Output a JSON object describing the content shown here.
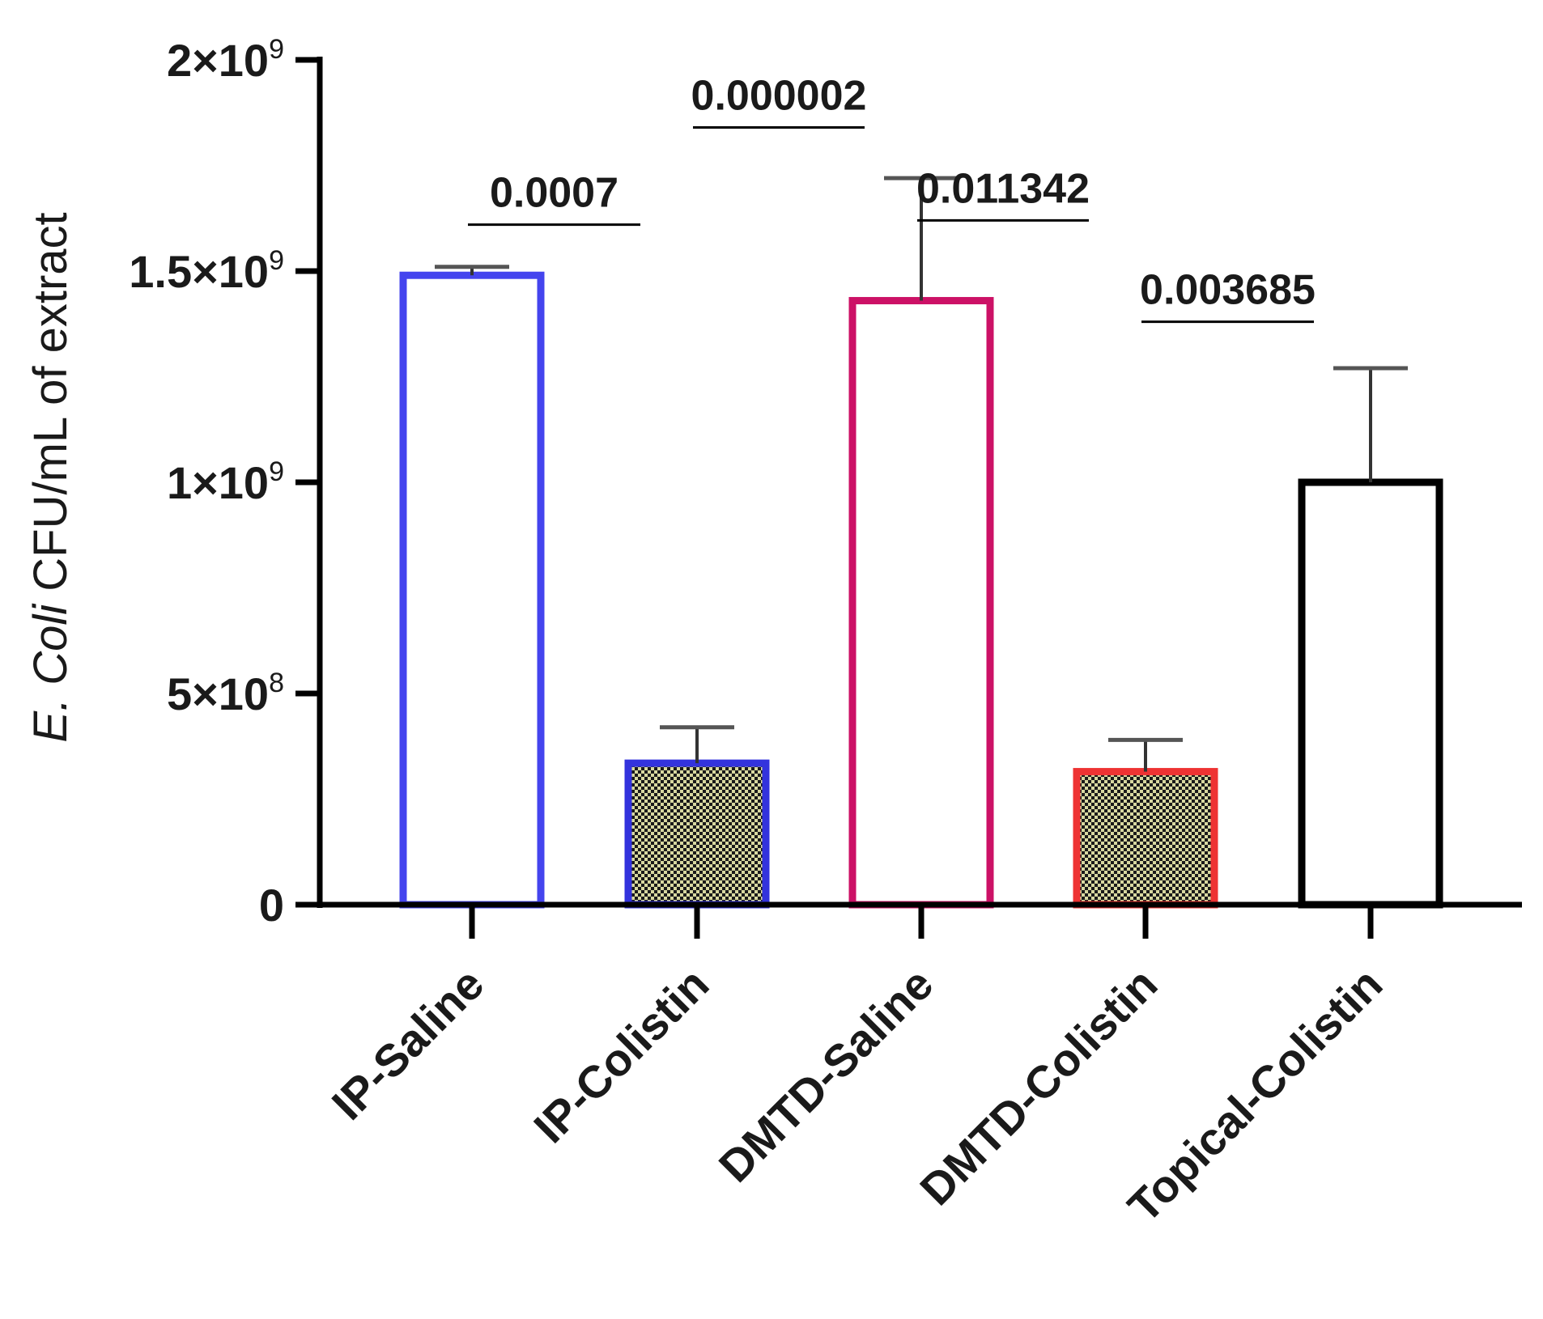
{
  "chart_data": {
    "type": "bar",
    "categories": [
      "IP-Saline",
      "IP-Colistin",
      "DMTD-Saline",
      "DMTD-Colistin",
      "Topical-Colistin"
    ],
    "values": [
      1490000000,
      335000000,
      1430000000,
      315000000,
      1000000000
    ],
    "errors": [
      20000000,
      85000000,
      290000000,
      75000000,
      270000000
    ],
    "bar_colors": [
      "#4444ee",
      "#3333dd",
      "#cc1166",
      "#ee3333",
      "#000000"
    ],
    "bar_patterns": [
      "none",
      "checker",
      "none",
      "checker",
      "none"
    ],
    "pattern_colors": [
      "#ffffff",
      "#d8d8a0",
      "#ffffff",
      "#d8d8a0",
      "#ffffff"
    ],
    "ylabel_italic": "E. Coli",
    "ylabel_rest": " CFU/mL of extract",
    "ylim": [
      0,
      2000000000
    ],
    "yticks": [
      {
        "value": 0,
        "base": "0",
        "exp": ""
      },
      {
        "value": 500000000,
        "base": "5×10",
        "exp": "8"
      },
      {
        "value": 1000000000,
        "base": "1×10",
        "exp": "9"
      },
      {
        "value": 1500000000,
        "base": "1.5×10",
        "exp": "9"
      },
      {
        "value": 2000000000,
        "base": "2×10",
        "exp": "9"
      }
    ],
    "significance": [
      {
        "from": 0,
        "to": 1,
        "label": "0.0007",
        "y": 1610000000
      },
      {
        "from": 1,
        "to": 2,
        "label": "0.000002",
        "y": 1840000000
      },
      {
        "from": 2,
        "to": 3,
        "label": "0.011342",
        "y": 1620000000
      },
      {
        "from": 3,
        "to": 4,
        "label": "0.003685",
        "y": 1380000000
      }
    ],
    "title": ""
  }
}
